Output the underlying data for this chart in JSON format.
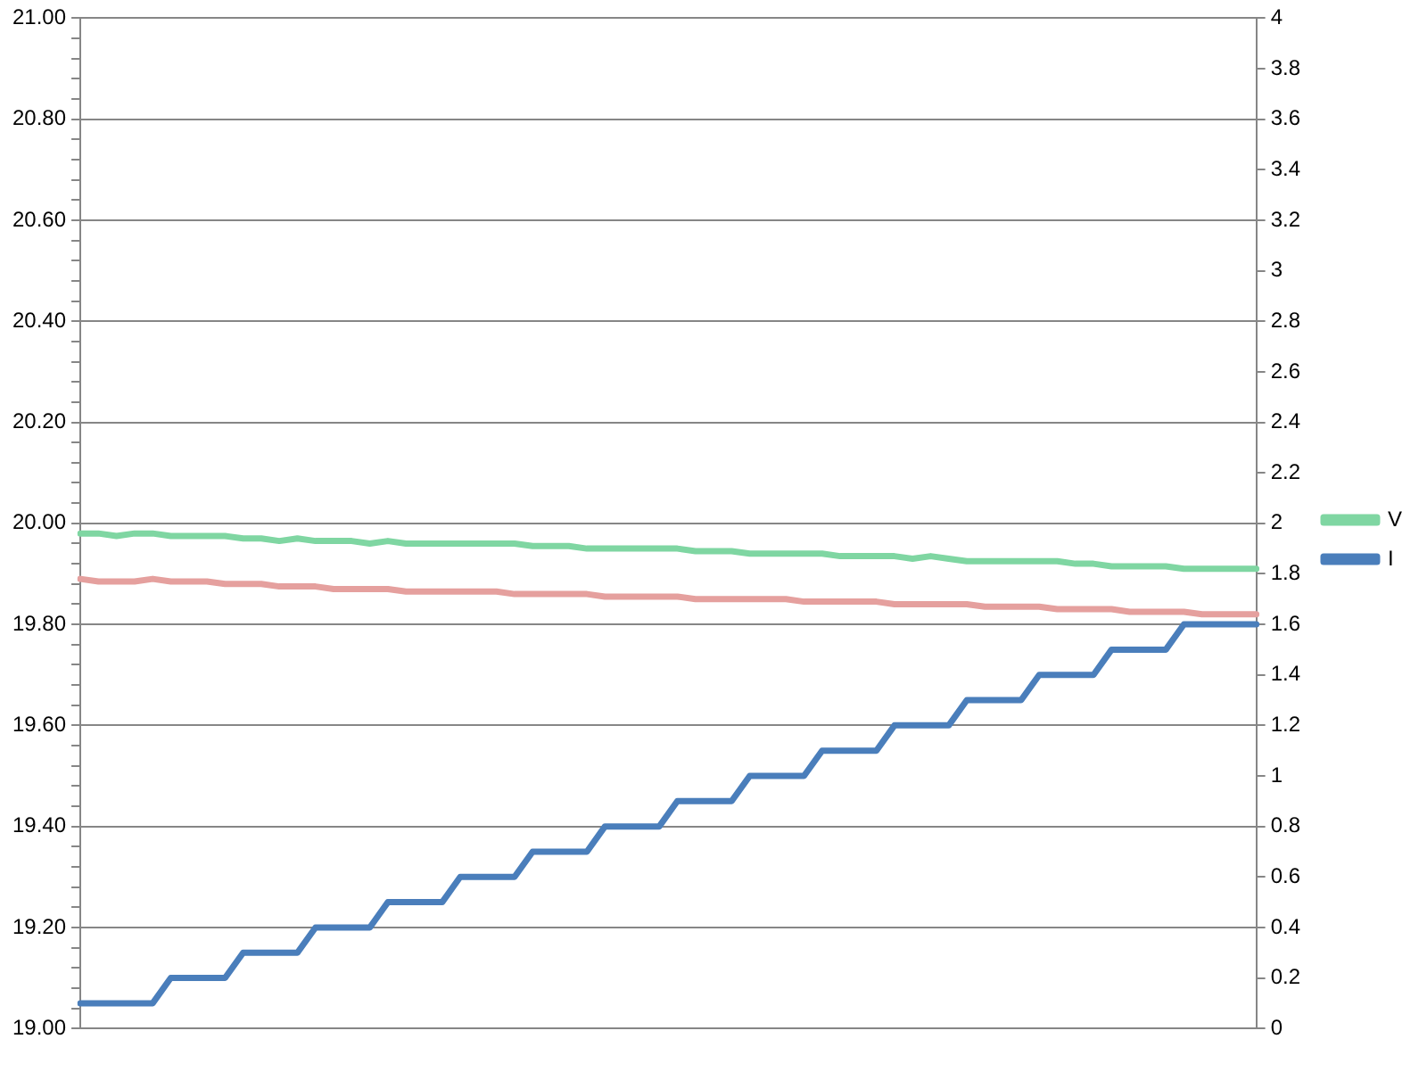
{
  "chart_data": {
    "type": "line",
    "categories": [
      null,
      null,
      null,
      null,
      null,
      null,
      null,
      null,
      null,
      null,
      null,
      null,
      null,
      null,
      null,
      null,
      null,
      null,
      null,
      null,
      null,
      null,
      null,
      null,
      null,
      null,
      null,
      null,
      null,
      null,
      null,
      null,
      null,
      null,
      null,
      null,
      null,
      null,
      null,
      null,
      null,
      null,
      null,
      null,
      null,
      null,
      null,
      null,
      null,
      null,
      null,
      null,
      null,
      null,
      null,
      null,
      null,
      null,
      null,
      null,
      null,
      null,
      null,
      null,
      null,
      null
    ],
    "series": [
      {
        "name": "V",
        "color": "#7fd6a2",
        "values": [
          19.98,
          19.98,
          19.975,
          19.98,
          19.98,
          19.975,
          19.975,
          19.975,
          19.975,
          19.97,
          19.97,
          19.965,
          19.97,
          19.965,
          19.965,
          19.965,
          19.96,
          19.965,
          19.96,
          19.96,
          19.96,
          19.96,
          19.96,
          19.96,
          19.96,
          19.955,
          19.955,
          19.955,
          19.95,
          19.95,
          19.95,
          19.95,
          19.95,
          19.95,
          19.945,
          19.945,
          19.945,
          19.94,
          19.94,
          19.94,
          19.94,
          19.94,
          19.935,
          19.935,
          19.935,
          19.935,
          19.93,
          19.935,
          19.93,
          19.925,
          19.925,
          19.925,
          19.925,
          19.925,
          19.925,
          19.92,
          19.92,
          19.915,
          19.915,
          19.915,
          19.915,
          19.91,
          19.91,
          19.91,
          19.91,
          19.91
        ]
      },
      {
        "color": "#e5a09e",
        "values": [
          19.89,
          19.885,
          19.885,
          19.885,
          19.89,
          19.885,
          19.885,
          19.885,
          19.88,
          19.88,
          19.88,
          19.875,
          19.875,
          19.875,
          19.87,
          19.87,
          19.87,
          19.87,
          19.865,
          19.865,
          19.865,
          19.865,
          19.865,
          19.865,
          19.86,
          19.86,
          19.86,
          19.86,
          19.86,
          19.855,
          19.855,
          19.855,
          19.855,
          19.855,
          19.85,
          19.85,
          19.85,
          19.85,
          19.85,
          19.85,
          19.845,
          19.845,
          19.845,
          19.845,
          19.845,
          19.84,
          19.84,
          19.84,
          19.84,
          19.84,
          19.835,
          19.835,
          19.835,
          19.835,
          19.83,
          19.83,
          19.83,
          19.83,
          19.825,
          19.825,
          19.825,
          19.825,
          19.82,
          19.82,
          19.82,
          19.82
        ]
      },
      {
        "name": "I",
        "color": "#4a7ebb",
        "axis": "y2",
        "values": [
          0.1,
          0.1,
          0.1,
          0.1,
          0.1,
          0.2,
          0.2,
          0.2,
          0.2,
          0.3,
          0.3,
          0.3,
          0.3,
          0.4,
          0.4,
          0.4,
          0.4,
          0.5,
          0.5,
          0.5,
          0.5,
          0.6,
          0.6,
          0.6,
          0.6,
          0.7,
          0.7,
          0.7,
          0.7,
          0.8,
          0.8,
          0.8,
          0.8,
          0.9,
          0.9,
          0.9,
          0.9,
          1.0,
          1.0,
          1.0,
          1.0,
          1.1,
          1.1,
          1.1,
          1.1,
          1.2,
          1.2,
          1.2,
          1.2,
          1.3,
          1.3,
          1.3,
          1.3,
          1.4,
          1.4,
          1.4,
          1.4,
          1.5,
          1.5,
          1.5,
          1.5,
          1.6,
          1.6,
          1.6,
          1.6,
          1.6
        ]
      }
    ],
    "ylim": [
      19,
      21
    ],
    "yticks": [
      {
        "value": 19,
        "label": "19.00"
      },
      {
        "value": 19.04,
        "label": null
      },
      {
        "value": 19.08,
        "label": null
      },
      {
        "value": 19.12,
        "label": null
      },
      {
        "value": 19.16,
        "label": null
      },
      {
        "value": 19.2,
        "label": "19.20"
      },
      {
        "value": 19.24,
        "label": null
      },
      {
        "value": 19.28,
        "label": null
      },
      {
        "value": 19.32,
        "label": null
      },
      {
        "value": 19.36,
        "label": null
      },
      {
        "value": 19.4,
        "label": "19.40"
      },
      {
        "value": 19.44,
        "label": null
      },
      {
        "value": 19.48,
        "label": null
      },
      {
        "value": 19.52,
        "label": null
      },
      {
        "value": 19.56,
        "label": null
      },
      {
        "value": 19.6,
        "label": "19.60"
      },
      {
        "value": 19.64,
        "label": null
      },
      {
        "value": 19.68,
        "label": null
      },
      {
        "value": 19.72,
        "label": null
      },
      {
        "value": 19.76,
        "label": null
      },
      {
        "value": 19.8,
        "label": "19.80"
      },
      {
        "value": 19.84,
        "label": null
      },
      {
        "value": 19.88,
        "label": null
      },
      {
        "value": 19.92,
        "label": null
      },
      {
        "value": 19.96,
        "label": null
      },
      {
        "value": 20,
        "label": "20.00"
      },
      {
        "value": 20.04,
        "label": null
      },
      {
        "value": 20.08,
        "label": null
      },
      {
        "value": 20.12,
        "label": null
      },
      {
        "value": 20.16,
        "label": null
      },
      {
        "value": 20.2,
        "label": "20.20"
      },
      {
        "value": 20.24,
        "label": null
      },
      {
        "value": 20.28,
        "label": null
      },
      {
        "value": 20.32,
        "label": null
      },
      {
        "value": 20.36,
        "label": null
      },
      {
        "value": 20.4,
        "label": "20.40"
      },
      {
        "value": 20.44,
        "label": null
      },
      {
        "value": 20.48,
        "label": null
      },
      {
        "value": 20.52,
        "label": null
      },
      {
        "value": 20.56,
        "label": null
      },
      {
        "value": 20.6,
        "label": "20.60"
      },
      {
        "value": 20.64,
        "label": null
      },
      {
        "value": 20.68,
        "label": null
      },
      {
        "value": 20.72,
        "label": null
      },
      {
        "value": 20.76,
        "label": null
      },
      {
        "value": 20.8,
        "label": "20.80"
      },
      {
        "value": 20.84,
        "label": null
      },
      {
        "value": 20.88,
        "label": null
      },
      {
        "value": 20.92,
        "label": null
      },
      {
        "value": 20.96,
        "label": null
      },
      {
        "value": 21,
        "label": "21.00"
      }
    ],
    "y2lim": [
      0,
      4
    ],
    "y2ticks": [
      0,
      0.2,
      0.4,
      0.6,
      0.8,
      1,
      1.2,
      1.4,
      1.6,
      1.8,
      2,
      2.2,
      2.4,
      2.6,
      2.8,
      3,
      3.2,
      3.4,
      3.6,
      3.8,
      4
    ],
    "grid": "y",
    "legend": "right",
    "marker": "none",
    "line_style": "solid"
  }
}
